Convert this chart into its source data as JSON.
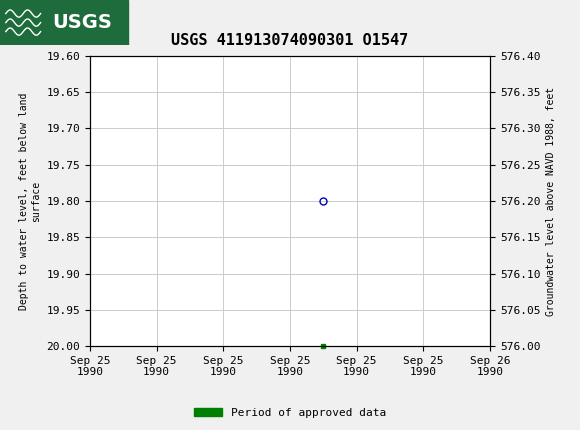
{
  "title": "USGS 411913074090301 O1547",
  "title_fontsize": 11,
  "ylabel_left": "Depth to water level, feet below land\nsurface",
  "ylabel_right": "Groundwater level above NAVD 1988, feet",
  "ylim_left_top": 19.6,
  "ylim_left_bottom": 20.0,
  "ylim_right_top": 576.4,
  "ylim_right_bottom": 576.0,
  "yticks_left": [
    19.6,
    19.65,
    19.7,
    19.75,
    19.8,
    19.85,
    19.9,
    19.95,
    20.0
  ],
  "ytick_labels_left": [
    "19.60",
    "19.65",
    "19.70",
    "19.75",
    "19.80",
    "19.85",
    "19.90",
    "19.95",
    "20.00"
  ],
  "yticks_right": [
    576.4,
    576.35,
    576.3,
    576.25,
    576.2,
    576.15,
    576.1,
    576.05,
    576.0
  ],
  "ytick_labels_right": [
    "576.40",
    "576.35",
    "576.30",
    "576.25",
    "576.20",
    "576.15",
    "576.10",
    "576.05",
    "576.00"
  ],
  "point_x": 3.5,
  "point_y": 19.8,
  "point_color": "#0000bb",
  "point_marker": "o",
  "point_size": 5,
  "green_marker_x": 3.5,
  "green_marker_y": 20.0,
  "green_color": "#008000",
  "xlim": [
    0,
    6
  ],
  "xtick_positions": [
    0,
    1,
    2,
    3,
    4,
    5,
    6
  ],
  "xtick_labels": [
    "Sep 25\n1990",
    "Sep 25\n1990",
    "Sep 25\n1990",
    "Sep 25\n1990",
    "Sep 25\n1990",
    "Sep 25\n1990",
    "Sep 26\n1990"
  ],
  "grid_color": "#cccccc",
  "background_color": "#f0f0f0",
  "plot_bg_color": "#ffffff",
  "legend_label": "Period of approved data",
  "header_bg_color": "#1e6b3c",
  "usgs_text_color": "#ffffff",
  "font_family": "monospace",
  "tick_fontsize": 8,
  "label_fontsize": 7,
  "legend_fontsize": 8
}
